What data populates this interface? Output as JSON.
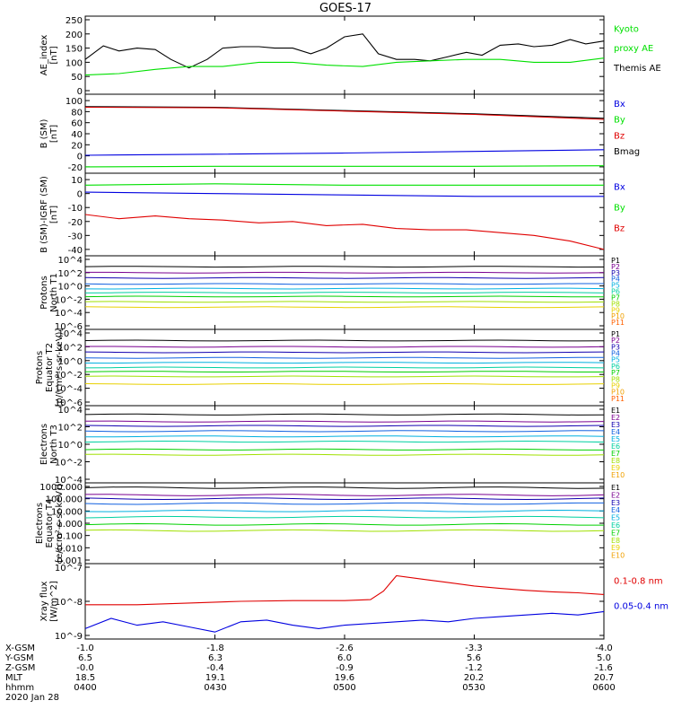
{
  "title": "GOES-17",
  "colors": {
    "black": "#000000",
    "red": "#e00000",
    "green": "#00e000",
    "blue": "#0000e0",
    "series_palette": [
      "#000000",
      "#7a0090",
      "#1200b0",
      "#1060e0",
      "#00b0e0",
      "#00d0a0",
      "#00d000",
      "#a0e000",
      "#e8d000",
      "#f0a000",
      "#ff6000",
      "#e00000",
      "#b00000"
    ]
  },
  "ephemeris": {
    "labels": [
      "X-GSM",
      "Y-GSM",
      "Z-GSM",
      "MLT",
      "hhmm",
      "2020 Jan 28"
    ],
    "columns": [
      {
        "x": "-1.0",
        "y": "6.5",
        "z": "-0.0",
        "mlt": "18.5",
        "hhmm": "0400"
      },
      {
        "x": "-1.8",
        "y": "6.3",
        "z": "-0.4",
        "mlt": "19.1",
        "hhmm": "0430"
      },
      {
        "x": "-2.6",
        "y": "6.0",
        "z": "-0.9",
        "mlt": "19.6",
        "hhmm": "0500"
      },
      {
        "x": "-3.3",
        "y": "5.6",
        "z": "-1.2",
        "mlt": "20.2",
        "hhmm": "0530"
      },
      {
        "x": "-4.0",
        "y": "5.0",
        "z": "-1.6",
        "mlt": "20.7",
        "hhmm": "0600"
      }
    ]
  },
  "chart_data": [
    {
      "type": "line",
      "id": "ae",
      "ylabel": [
        "AE_index",
        "[nT]"
      ],
      "ylim": [
        0,
        250
      ],
      "yticks": [
        "0",
        "50",
        "100",
        "150",
        "200",
        "250"
      ],
      "x_range_hours": [
        4.0,
        6.0
      ],
      "legend": [
        {
          "text": "Kyoto",
          "color": "#00e000"
        },
        {
          "text": "proxy AE",
          "color": "#00e000"
        },
        {
          "text": "Themis AE",
          "color": "#000000"
        }
      ],
      "series": [
        {
          "name": "Themis AE",
          "color": "#000000",
          "x": [
            4.0,
            4.07,
            4.13,
            4.2,
            4.27,
            4.33,
            4.4,
            4.47,
            4.53,
            4.6,
            4.67,
            4.73,
            4.8,
            4.87,
            4.93,
            5.0,
            5.07,
            5.13,
            5.2,
            5.27,
            5.33,
            5.4,
            5.47,
            5.53,
            5.6,
            5.67,
            5.73,
            5.8,
            5.87,
            5.93,
            6.0
          ],
          "values": [
            110,
            158,
            140,
            150,
            145,
            110,
            80,
            110,
            150,
            155,
            155,
            150,
            150,
            130,
            150,
            190,
            200,
            130,
            110,
            110,
            105,
            120,
            135,
            125,
            160,
            165,
            155,
            160,
            180,
            165,
            175
          ]
        },
        {
          "name": "Kyoto proxy AE",
          "color": "#00e000",
          "x": [
            4.0,
            4.13,
            4.27,
            4.4,
            4.53,
            4.67,
            4.8,
            4.93,
            5.07,
            5.2,
            5.33,
            5.47,
            5.6,
            5.73,
            5.87,
            6.0
          ],
          "values": [
            55,
            60,
            75,
            85,
            85,
            100,
            100,
            90,
            85,
            100,
            105,
            110,
            110,
            100,
            100,
            115
          ]
        }
      ]
    },
    {
      "type": "line",
      "id": "bsm",
      "ylabel": [
        "B (SM)",
        "[nT]"
      ],
      "ylim": [
        -25,
        105
      ],
      "yticks": [
        "-20",
        "0",
        "20",
        "40",
        "60",
        "80",
        "100"
      ],
      "x_range_hours": [
        4.0,
        6.0
      ],
      "legend": [
        {
          "text": "Bx",
          "color": "#0000e0"
        },
        {
          "text": "By",
          "color": "#00e000"
        },
        {
          "text": "Bz",
          "color": "#e00000"
        },
        {
          "text": "Bmag",
          "color": "#000000"
        }
      ],
      "series": [
        {
          "name": "Bmag",
          "color": "#000000",
          "x": [
            4.0,
            4.5,
            5.0,
            5.5,
            6.0
          ],
          "values": [
            89,
            88,
            82,
            76,
            68
          ]
        },
        {
          "name": "Bz",
          "color": "#e00000",
          "x": [
            4.0,
            4.5,
            5.0,
            5.5,
            6.0
          ],
          "values": [
            88,
            87,
            81,
            75,
            66
          ]
        },
        {
          "name": "Bx",
          "color": "#0000e0",
          "x": [
            4.0,
            4.5,
            5.0,
            5.5,
            6.0
          ],
          "values": [
            1,
            3,
            5,
            8,
            11
          ]
        },
        {
          "name": "By",
          "color": "#00e000",
          "x": [
            4.0,
            4.5,
            5.0,
            5.5,
            6.0
          ],
          "values": [
            -20,
            -19,
            -19,
            -19,
            -18
          ]
        }
      ]
    },
    {
      "type": "line",
      "id": "bigrf",
      "ylabel": [
        "B (SM)-IGRF (SM)",
        "[nT]"
      ],
      "ylim": [
        -42,
        12
      ],
      "yticks": [
        "-40",
        "-30",
        "-20",
        "-10",
        "0",
        "10"
      ],
      "x_range_hours": [
        4.0,
        6.0
      ],
      "legend": [
        {
          "text": "Bx",
          "color": "#0000e0"
        },
        {
          "text": "By",
          "color": "#00e000"
        },
        {
          "text": "Bz",
          "color": "#e00000"
        }
      ],
      "series": [
        {
          "name": "By",
          "color": "#00e000",
          "x": [
            4.0,
            4.5,
            5.0,
            5.5,
            6.0
          ],
          "values": [
            6,
            7,
            6,
            6,
            6
          ]
        },
        {
          "name": "Bx",
          "color": "#0000e0",
          "x": [
            4.0,
            4.5,
            5.0,
            5.5,
            6.0
          ],
          "values": [
            1,
            0,
            -1,
            -2,
            -2
          ]
        },
        {
          "name": "Bz",
          "color": "#e00000",
          "x": [
            4.0,
            4.13,
            4.27,
            4.4,
            4.53,
            4.67,
            4.8,
            4.93,
            5.07,
            5.2,
            5.33,
            5.47,
            5.6,
            5.73,
            5.87,
            6.0
          ],
          "values": [
            -15,
            -18,
            -16,
            -18,
            -19,
            -21,
            -20,
            -23,
            -22,
            -25,
            -26,
            -26,
            -28,
            -30,
            -34,
            -40
          ]
        }
      ]
    },
    {
      "type": "line",
      "id": "p_t1",
      "log": true,
      "ylabel": [
        "Protons",
        "North T1"
      ],
      "ylim_exp": [
        -6,
        4
      ],
      "yticks": [
        "10^-6",
        "10^-4",
        "10^-2",
        "10^0",
        "10^2",
        "10^4"
      ],
      "x_range_hours": [
        4.0,
        6.0
      ],
      "legend": [
        "P1",
        "P2",
        "P3",
        "P4",
        "P5",
        "P6",
        "P7",
        "P8",
        "P9",
        "P10",
        "P11"
      ],
      "levels_exp": [
        2.9,
        2.0,
        1.2,
        0.3,
        -0.4,
        -1.0,
        -1.6,
        -2.4,
        -3.2
      ]
    },
    {
      "type": "line",
      "id": "p_t2",
      "log": true,
      "ylabel": [
        "Protons",
        "Equator T2",
        "[p/(cm²-s-sr-keV)]"
      ],
      "ylim_exp": [
        -6,
        4
      ],
      "yticks": [
        "10^-6",
        "10^-4",
        "10^-2",
        "10^0",
        "10^2",
        "10^4"
      ],
      "x_range_hours": [
        4.0,
        6.0
      ],
      "legend": [
        "P1",
        "P2",
        "P3",
        "P4",
        "P5",
        "P6",
        "P7",
        "P8",
        "P9",
        "P10",
        "P11"
      ],
      "levels_exp": [
        2.9,
        2.0,
        1.2,
        0.4,
        -0.3,
        -1.0,
        -1.6,
        -2.3,
        -3.4
      ]
    },
    {
      "type": "line",
      "id": "e_t3",
      "log": true,
      "ylabel": [
        "Electrons",
        "North T3"
      ],
      "ylim_exp": [
        -4,
        4
      ],
      "yticks": [
        "10^-4",
        "10^-2",
        "10^0",
        "10^2",
        "10^4"
      ],
      "x_range_hours": [
        4.0,
        6.0
      ],
      "legend": [
        "E1",
        "E2",
        "E3",
        "E4",
        "E5",
        "E6",
        "E7",
        "E8",
        "E9",
        "E10"
      ],
      "levels_exp": [
        3.4,
        2.6,
        2.1,
        1.5,
        0.9,
        0.3,
        -0.6,
        -1.2
      ]
    },
    {
      "type": "line",
      "id": "e_t4",
      "log": true,
      "ylabel": [
        "Electrons",
        "Equator T4",
        "[e/(cm²-s-sr-keV)]"
      ],
      "ylim_exp": [
        -3,
        3
      ],
      "yticks": [
        "0.001",
        "0.010",
        "0.100",
        "1.000",
        "10.000",
        "100.000",
        "1000.000"
      ],
      "x_range_hours": [
        4.0,
        6.0
      ],
      "legend": [
        "E1",
        "E2",
        "E3",
        "E4",
        "E5",
        "E6",
        "E7",
        "E8",
        "E9",
        "E10"
      ],
      "levels_exp": [
        2.9,
        2.3,
        2.0,
        1.6,
        1.0,
        0.5,
        -0.1,
        -0.6
      ]
    },
    {
      "type": "line",
      "id": "xray",
      "log": true,
      "ylabel": [
        "Xray flux",
        "[W/m^2]"
      ],
      "ylim_exp": [
        -9,
        -7
      ],
      "yticks": [
        "10^-9",
        "10^-8",
        "10^-7"
      ],
      "x_range_hours": [
        4.0,
        6.0
      ],
      "legend": [
        {
          "text": "0.1-0.8 nm",
          "color": "#e00000"
        },
        {
          "text": "0.05-0.4 nm",
          "color": "#0000e0"
        }
      ],
      "series": [
        {
          "name": "0.1-0.8 nm",
          "color": "#e00000",
          "x": [
            4.0,
            4.2,
            4.4,
            4.6,
            4.8,
            5.0,
            5.1,
            5.15,
            5.2,
            5.3,
            5.4,
            5.5,
            5.6,
            5.7,
            5.8,
            5.9,
            6.0
          ],
          "values_exp": [
            -8.1,
            -8.1,
            -8.05,
            -8.0,
            -7.98,
            -7.98,
            -7.95,
            -7.7,
            -7.25,
            -7.35,
            -7.45,
            -7.55,
            -7.62,
            -7.68,
            -7.72,
            -7.75,
            -7.8
          ]
        },
        {
          "name": "0.05-0.4 nm",
          "color": "#0000e0",
          "x": [
            4.0,
            4.1,
            4.2,
            4.3,
            4.4,
            4.5,
            4.6,
            4.7,
            4.8,
            4.9,
            5.0,
            5.1,
            5.2,
            5.3,
            5.4,
            5.5,
            5.6,
            5.7,
            5.8,
            5.9,
            6.0
          ],
          "values_exp": [
            -8.8,
            -8.5,
            -8.7,
            -8.6,
            -8.75,
            -8.9,
            -8.6,
            -8.55,
            -8.7,
            -8.8,
            -8.7,
            -8.65,
            -8.6,
            -8.55,
            -8.6,
            -8.5,
            -8.45,
            -8.4,
            -8.35,
            -8.4,
            -8.3
          ]
        }
      ]
    }
  ],
  "x_axis": {
    "tick_labels": [
      "-1.0",
      "-1.8",
      "-2.6",
      "-3.3",
      "-4.0"
    ]
  }
}
